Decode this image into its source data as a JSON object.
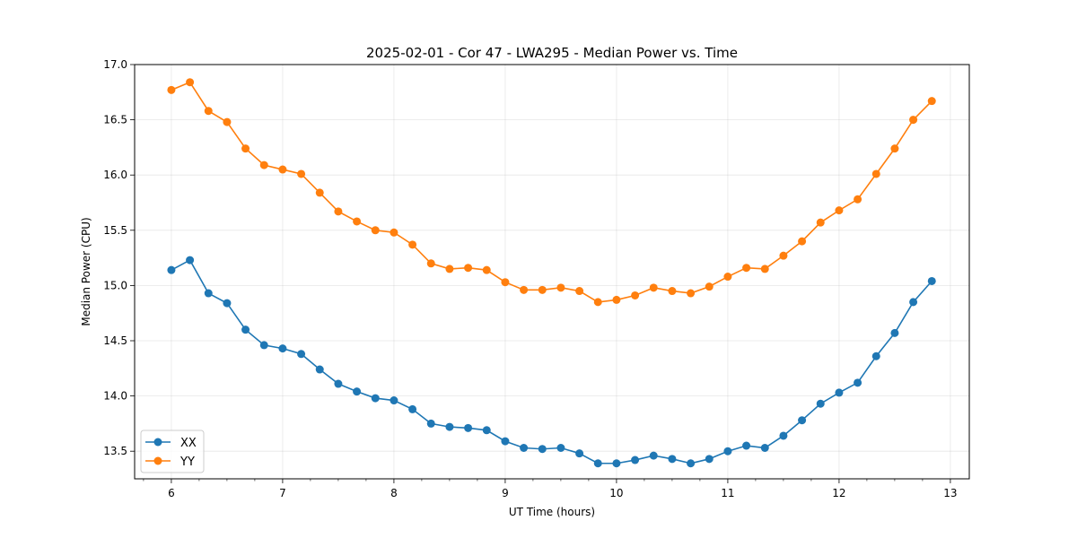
{
  "chart_data": {
    "type": "line",
    "title": "2025-02-01 - Cor 47 - LWA295 - Median Power vs. Time",
    "xlabel": "UT Time (hours)",
    "ylabel": "Median Power (CPU)",
    "xlim": [
      5.67,
      13.17
    ],
    "ylim": [
      13.25,
      17.0
    ],
    "grid": true,
    "legend": "lower-left",
    "xticks": [
      6,
      7,
      8,
      9,
      10,
      11,
      12,
      13
    ],
    "xtick_labels": [
      "6",
      "7",
      "8",
      "9",
      "10",
      "11",
      "12",
      "13"
    ],
    "yticks": [
      13.5,
      14.0,
      14.5,
      15.0,
      15.5,
      16.0,
      16.5,
      17.0
    ],
    "ytick_labels": [
      "13.5",
      "14.0",
      "14.5",
      "15.0",
      "15.5",
      "16.0",
      "16.5",
      "17.0"
    ],
    "x": [
      6.0,
      6.1667,
      6.3333,
      6.5,
      6.6667,
      6.8333,
      7.0,
      7.1667,
      7.3333,
      7.5,
      7.6667,
      7.8333,
      8.0,
      8.1667,
      8.3333,
      8.5,
      8.6667,
      8.8333,
      9.0,
      9.1667,
      9.3333,
      9.5,
      9.6667,
      9.8333,
      10.0,
      10.1667,
      10.3333,
      10.5,
      10.6667,
      10.8333,
      11.0,
      11.1667,
      11.3333,
      11.5,
      11.6667,
      11.8333,
      12.0,
      12.1667,
      12.3333,
      12.5,
      12.6667,
      12.8333
    ],
    "series": [
      {
        "name": "XX",
        "color": "#1f77b4",
        "values": [
          15.14,
          15.23,
          14.93,
          14.84,
          14.6,
          14.46,
          14.43,
          14.38,
          14.24,
          14.11,
          14.04,
          13.98,
          13.96,
          13.88,
          13.75,
          13.72,
          13.71,
          13.69,
          13.59,
          13.53,
          13.52,
          13.53,
          13.48,
          13.39,
          13.39,
          13.42,
          13.46,
          13.43,
          13.39,
          13.43,
          13.5,
          13.55,
          13.53,
          13.64,
          13.78,
          13.93,
          14.03,
          14.12,
          14.36,
          14.57,
          14.85,
          15.04
        ]
      },
      {
        "name": "YY",
        "color": "#ff7f0e",
        "values": [
          16.77,
          16.84,
          16.58,
          16.48,
          16.24,
          16.09,
          16.05,
          16.01,
          15.84,
          15.67,
          15.58,
          15.5,
          15.48,
          15.37,
          15.2,
          15.15,
          15.16,
          15.14,
          15.03,
          14.96,
          14.96,
          14.98,
          14.95,
          14.85,
          14.87,
          14.91,
          14.98,
          14.95,
          14.93,
          14.99,
          15.08,
          15.16,
          15.15,
          15.27,
          15.4,
          15.57,
          15.68,
          15.78,
          16.01,
          16.24,
          16.5,
          16.67
        ]
      }
    ]
  }
}
